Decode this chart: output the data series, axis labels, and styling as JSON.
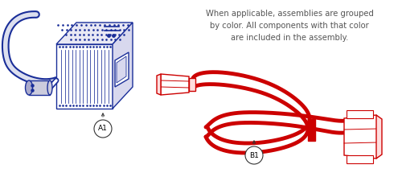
{
  "annotation_text": "When applicable, assemblies are grouped\nby color. All components with that color\nare included in the assembly.",
  "label_A1": "A1",
  "label_B1": "B1",
  "charger_color": "#1a2e99",
  "cable_color": "#cc0000",
  "label_line_color": "#333333",
  "annotation_color": "#555555",
  "bg_color": "#ffffff",
  "charger_fill": "#f0f0f8",
  "charger_top_fill": "#e8e8f4",
  "charger_right_fill": "#d8d8ee"
}
